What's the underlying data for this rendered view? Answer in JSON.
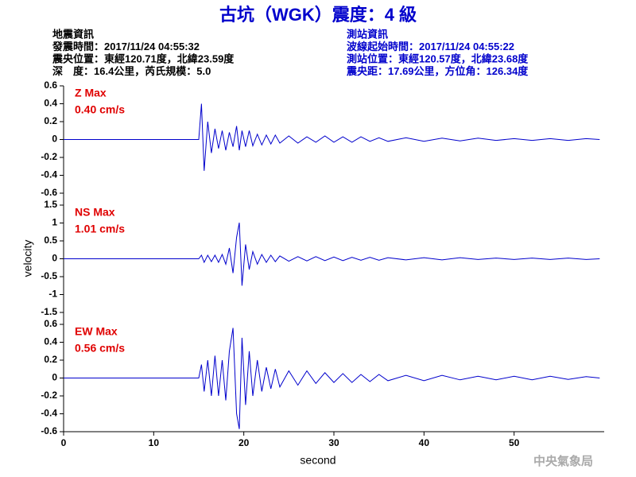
{
  "title": "古坑（WGK）震度：4 級",
  "event_info": [
    "地震資訊",
    "發震時間：2017/11/24 04:55:32",
    "震央位置：東經120.71度，北緯23.59度",
    "深　度：16.4公里，芮氏規模：5.0"
  ],
  "station_info": [
    "測站資訊",
    "波線起始時間：2017/11/24 04:55:22",
    "測站位置：東經120.57度，北緯23.68度",
    "震央距：17.69公里，方位角：126.34度"
  ],
  "ylabel": "velocity",
  "footer": "中央氣象局",
  "chart_data": [
    {
      "type": "line",
      "label": "Z Max",
      "max_label": "0.40 cm/s",
      "color": "#0000cc",
      "x": [
        0,
        15,
        15.3,
        15.6,
        16,
        16.4,
        16.8,
        17.2,
        17.6,
        18,
        18.4,
        18.8,
        19.2,
        19.5,
        19.8,
        20.2,
        20.6,
        21,
        21.5,
        22,
        22.5,
        23,
        23.5,
        24,
        25,
        26,
        27,
        28,
        29,
        30,
        31,
        32,
        33,
        34,
        35,
        36,
        38,
        40,
        42,
        44,
        46,
        48,
        50,
        52,
        54,
        56,
        58,
        59.5
      ],
      "values": [
        0,
        0,
        0.4,
        -0.35,
        0.2,
        -0.15,
        0.12,
        -0.1,
        0.1,
        -0.12,
        0.08,
        -0.08,
        0.15,
        -0.12,
        0.1,
        -0.08,
        0.1,
        -0.07,
        0.06,
        -0.06,
        0.05,
        -0.05,
        0.05,
        -0.04,
        0.04,
        -0.04,
        0.03,
        -0.03,
        0.04,
        -0.03,
        0.03,
        -0.03,
        0.03,
        -0.02,
        0.02,
        -0.02,
        0.02,
        -0.02,
        0.015,
        -0.015,
        0.015,
        -0.01,
        0.01,
        -0.01,
        0.01,
        -0.01,
        0.01,
        0
      ],
      "xlim": [
        0,
        60
      ],
      "ylim": [
        -0.6,
        0.6
      ],
      "yticks": [
        0.6,
        0.4,
        0.2,
        0,
        -0.2,
        -0.4,
        -0.6
      ]
    },
    {
      "type": "line",
      "label": "NS Max",
      "max_label": "1.01 cm/s",
      "color": "#0000cc",
      "x": [
        0,
        15,
        15.3,
        15.6,
        16,
        16.4,
        16.8,
        17.2,
        17.6,
        18,
        18.4,
        18.8,
        19.2,
        19.5,
        19.8,
        20.2,
        20.6,
        21,
        21.5,
        22,
        22.5,
        23,
        23.5,
        24,
        25,
        26,
        27,
        28,
        29,
        30,
        31,
        32,
        33,
        34,
        35,
        36,
        38,
        40,
        42,
        44,
        46,
        48,
        50,
        52,
        54,
        56,
        58,
        59.5
      ],
      "values": [
        0,
        0,
        0.1,
        -0.1,
        0.1,
        -0.08,
        0.1,
        -0.1,
        0.12,
        -0.15,
        0.3,
        -0.4,
        0.6,
        1.01,
        -0.75,
        0.4,
        -0.3,
        0.2,
        -0.15,
        0.12,
        -0.1,
        0.1,
        -0.08,
        0.08,
        -0.07,
        0.06,
        -0.06,
        0.06,
        -0.05,
        0.05,
        -0.05,
        0.04,
        -0.04,
        0.04,
        -0.04,
        0.03,
        -0.03,
        0.03,
        -0.03,
        0.03,
        -0.02,
        0.02,
        -0.02,
        0.02,
        -0.02,
        0.02,
        -0.02,
        0
      ],
      "xlim": [
        0,
        60
      ],
      "ylim": [
        -1.5,
        1.5
      ],
      "yticks": [
        1.5,
        1,
        0.5,
        0,
        -0.5,
        -1,
        -1.5
      ]
    },
    {
      "type": "line",
      "label": "EW Max",
      "max_label": "0.56 cm/s",
      "color": "#0000cc",
      "x": [
        0,
        15,
        15.3,
        15.6,
        16,
        16.4,
        16.8,
        17.2,
        17.6,
        18,
        18.4,
        18.8,
        19.2,
        19.5,
        19.8,
        20.2,
        20.6,
        21,
        21.5,
        22,
        22.5,
        23,
        23.5,
        24,
        25,
        26,
        27,
        28,
        29,
        30,
        31,
        32,
        33,
        34,
        35,
        36,
        38,
        40,
        42,
        44,
        46,
        48,
        50,
        52,
        54,
        56,
        58,
        59.5
      ],
      "values": [
        0,
        0,
        0.15,
        -0.15,
        0.2,
        -0.2,
        0.25,
        -0.2,
        0.2,
        -0.25,
        0.3,
        0.56,
        -0.4,
        -0.57,
        0.45,
        -0.3,
        0.3,
        -0.2,
        0.2,
        -0.15,
        0.12,
        -0.12,
        0.1,
        -0.1,
        0.08,
        -0.08,
        0.08,
        -0.06,
        0.06,
        -0.05,
        0.05,
        -0.05,
        0.04,
        -0.04,
        0.04,
        -0.03,
        0.03,
        -0.03,
        0.03,
        -0.02,
        0.02,
        -0.02,
        0.02,
        -0.02,
        0.02,
        -0.015,
        0.015,
        0
      ],
      "xlim": [
        0,
        60
      ],
      "ylim": [
        -0.6,
        0.6
      ],
      "yticks": [
        0.6,
        0.4,
        0.2,
        0,
        -0.2,
        -0.4,
        -0.6
      ],
      "xlabel": "second",
      "xticks": [
        0,
        10,
        20,
        30,
        40,
        50
      ]
    }
  ]
}
